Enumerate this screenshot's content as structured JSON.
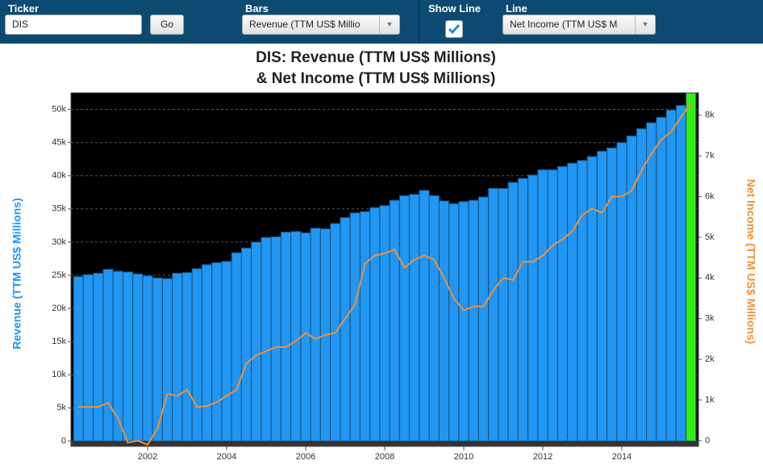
{
  "controls": {
    "ticker_label": "Ticker",
    "ticker_value": "DIS",
    "go": "Go",
    "bars_label": "Bars",
    "bars_value": "Revenue (TTM US$ Millio",
    "show_line_label": "Show Line",
    "show_line": true,
    "line_label": "Line",
    "line_value": "Net Income (TTM US$ M"
  },
  "chart_data": {
    "type": "bar-line",
    "title": [
      "DIS: Revenue (TTM US$ Millions)",
      "& Net Income (TTM US$ Millions)"
    ],
    "y_label": "Revenue (TTM US$ Millions)",
    "y2_label": "Net Income (TTM US$ Millions)",
    "x": [
      2000.25,
      2000.5,
      2000.75,
      2001,
      2001.25,
      2001.5,
      2001.75,
      2002,
      2002.25,
      2002.5,
      2002.75,
      2003,
      2003.25,
      2003.5,
      2003.75,
      2004,
      2004.25,
      2004.5,
      2004.75,
      2005,
      2005.25,
      2005.5,
      2005.75,
      2006,
      2006.25,
      2006.5,
      2006.75,
      2007,
      2007.25,
      2007.5,
      2007.75,
      2008,
      2008.25,
      2008.5,
      2008.75,
      2009,
      2009.25,
      2009.5,
      2009.75,
      2010,
      2010.25,
      2010.5,
      2010.75,
      2011,
      2011.25,
      2011.5,
      2011.75,
      2012,
      2012.25,
      2012.5,
      2012.75,
      2013,
      2013.25,
      2013.5,
      2013.75,
      2014,
      2014.25,
      2014.5,
      2014.75,
      2015,
      2015.25,
      2015.5,
      2015.75
    ],
    "series": [
      {
        "name": "Revenue (TTM US$ Millions)",
        "color": "#2196f3",
        "highlight_color": "#33ee11",
        "highlight_index": 62,
        "values": [
          24800,
          25100,
          25300,
          25900,
          25600,
          25500,
          25200,
          24900,
          24600,
          24500,
          25300,
          25400,
          26000,
          26600,
          26900,
          27100,
          28400,
          29100,
          30000,
          30700,
          30800,
          31500,
          31600,
          31400,
          32100,
          32000,
          32800,
          33700,
          34400,
          34600,
          35200,
          35500,
          36300,
          37000,
          37200,
          37800,
          37000,
          36200,
          35800,
          36100,
          36300,
          36800,
          38100,
          38100,
          39000,
          39600,
          40100,
          40900,
          40900,
          41400,
          41900,
          42300,
          42900,
          43700,
          44200,
          45000,
          46000,
          47100,
          48000,
          48800,
          49900,
          50600,
          51400
        ]
      },
      {
        "name": "Net Income (TTM US$ Millions)",
        "color": "#f0913a",
        "axis": "y2",
        "values": [
          830,
          830,
          830,
          930,
          550,
          -50,
          0,
          -100,
          300,
          1150,
          1100,
          1250,
          830,
          850,
          950,
          1100,
          1250,
          1900,
          2100,
          2200,
          2300,
          2300,
          2450,
          2650,
          2500,
          2600,
          2650,
          3000,
          3350,
          4350,
          4550,
          4600,
          4700,
          4250,
          4450,
          4550,
          4450,
          4000,
          3500,
          3200,
          3300,
          3300,
          3700,
          4000,
          3950,
          4400,
          4400,
          4550,
          4800,
          4950,
          5150,
          5550,
          5700,
          5600,
          6000,
          6000,
          6150,
          6650,
          7050,
          7400,
          7600,
          7950,
          8300
        ]
      }
    ],
    "xlim": [
      2000.06,
      2015.94
    ],
    "xticks": [
      2002,
      2004,
      2006,
      2008,
      2010,
      2012,
      2014
    ],
    "ylim": [
      -800,
      52500
    ],
    "yticks": [
      0,
      {
        "value": 5000,
        "label": "5k"
      },
      {
        "value": 10000,
        "label": "10k"
      },
      {
        "value": 15000,
        "label": "15k"
      },
      {
        "value": 20000,
        "label": "20k"
      },
      {
        "value": 25000,
        "label": "25k"
      },
      {
        "value": 30000,
        "label": "30k"
      },
      {
        "value": 35000,
        "label": "35k"
      },
      {
        "value": 40000,
        "label": "40k"
      },
      {
        "value": 45000,
        "label": "45k"
      },
      {
        "value": 50000,
        "label": "50k"
      }
    ],
    "y2lim": [
      -140,
      8550
    ],
    "y2ticks": [
      0,
      {
        "value": 1000,
        "label": "1k"
      },
      {
        "value": 2000,
        "label": "2k"
      },
      {
        "value": 3000,
        "label": "3k"
      },
      {
        "value": 4000,
        "label": "4k"
      },
      {
        "value": 5000,
        "label": "5k"
      },
      {
        "value": 6000,
        "label": "6k"
      },
      {
        "value": 7000,
        "label": "7k"
      },
      {
        "value": 8000,
        "label": "8k"
      }
    ],
    "grid": true
  }
}
